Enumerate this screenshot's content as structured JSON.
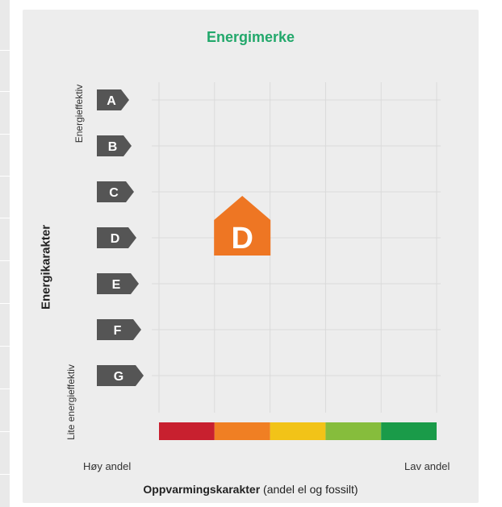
{
  "chart_data": {
    "type": "energy-label-matrix",
    "title": "Energimerke",
    "ylabel": "Energikarakter",
    "y_top_label": "Energieffektiv",
    "y_bottom_label": "Lite energieffektiv",
    "xlabel_bold": "Oppvarmingskarakter",
    "xlabel_rest": " (andel el og fossilt)",
    "x_left_label": "Høy andel",
    "x_right_label": "Lav andel",
    "energy_grades": [
      "A",
      "B",
      "C",
      "D",
      "E",
      "F",
      "G"
    ],
    "heating_scale_colors": [
      "#c8202f",
      "#f07f23",
      "#f2c318",
      "#86bd3c",
      "#1a9b49"
    ],
    "result": {
      "energy_grade": "D",
      "heating_grade_index": 2,
      "color": "#ee7623"
    },
    "arrow_color": "#555555",
    "grid": true
  }
}
